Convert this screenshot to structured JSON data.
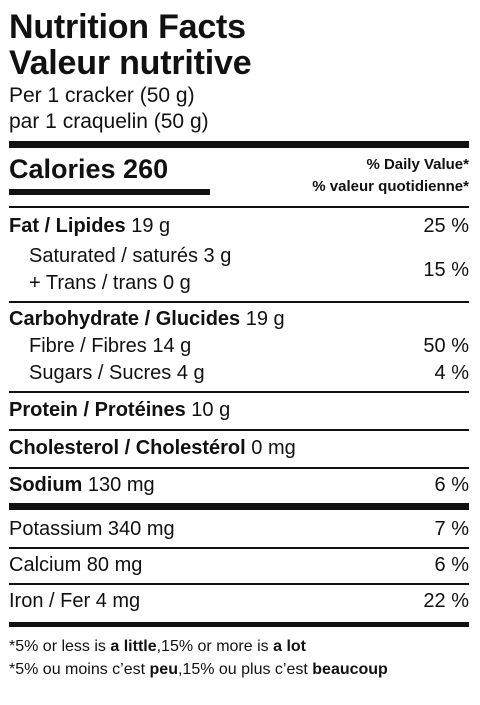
{
  "title_en": "Nutrition Facts",
  "title_fr": "Valeur nutritive",
  "serving_en": "Per 1 cracker (50 g)",
  "serving_fr": "par 1 craquelin (50 g)",
  "calories_label": "Calories 260",
  "dv_header_en": "% Daily Value*",
  "dv_header_fr": "% valeur quotidienne*",
  "fat": {
    "label": "Fat / Lipides",
    "amount": "19 g",
    "dv": "25 %"
  },
  "saturated": {
    "label": "Saturated / saturés 3 g"
  },
  "trans": {
    "label": "+ Trans / trans 0 g",
    "dv": "15 %"
  },
  "carb": {
    "label": "Carbohydrate / Glucides",
    "amount": "19 g"
  },
  "fibre": {
    "label": "Fibre / Fibres 14 g",
    "dv": "50 %"
  },
  "sugars": {
    "label": "Sugars / Sucres 4 g",
    "dv": "4 %"
  },
  "protein": {
    "label": "Protein / Protéines",
    "amount": "10 g"
  },
  "cholesterol": {
    "label": "Cholesterol / Cholestérol",
    "amount": "0 mg"
  },
  "sodium": {
    "label": "Sodium",
    "amount": "130 mg",
    "dv": "6 %"
  },
  "potassium": {
    "label": "Potassium 340 mg",
    "dv": "7 %"
  },
  "calcium": {
    "label": "Calcium 80 mg",
    "dv": "6 %"
  },
  "iron": {
    "label": "Iron / Fer 4 mg",
    "dv": "22 %"
  },
  "footnote_en": {
    "pre": "*5% or less is ",
    "little": "a little",
    "mid": ",15% or more is ",
    "lot": "a lot"
  },
  "footnote_fr": {
    "pre": "*5% ou moins c’est ",
    "peu": "peu",
    "mid": ",15% ou plus c’est ",
    "beaucoup": "beaucoup"
  }
}
